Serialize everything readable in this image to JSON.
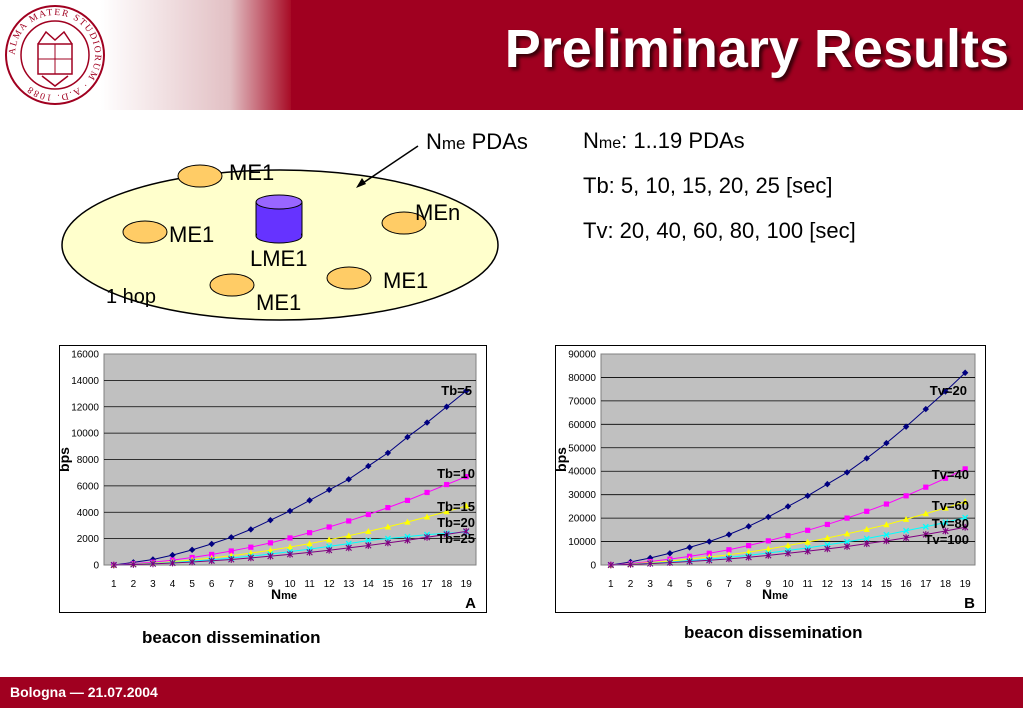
{
  "header": {
    "title": "Preliminary Results"
  },
  "seal": {
    "text": "ALMA MATER STUDIORUM · A.D. 1088"
  },
  "footer": {
    "text": "Bologna — 21.07.2004"
  },
  "diagram": {
    "nodes": [
      "ME1",
      "MEn",
      "ME1",
      "ME1",
      "ME1"
    ],
    "center_label": "LME1",
    "hop_label": "1 hop",
    "pointer_main": "N",
    "pointer_sub": "me",
    "pointer_rest": " PDAs"
  },
  "params": {
    "nme_main": "N",
    "nme_sub": "me",
    "nme_rest": ": 1..19 PDAs",
    "tb": "Tb: 5, 10, 15, 20, 25 [sec]",
    "tv": "Tv: 20, 40, 60, 80, 100 [sec]"
  },
  "chart_data": [
    {
      "type": "line",
      "panel": "A",
      "caption": "beacon dissemination",
      "xlabel_main": "N",
      "xlabel_sub": "me",
      "ylabel": "bps",
      "x": [
        1,
        2,
        3,
        4,
        5,
        6,
        7,
        8,
        9,
        10,
        11,
        12,
        13,
        14,
        15,
        16,
        17,
        18,
        19
      ],
      "ylim": [
        0,
        16000
      ],
      "yticks": [
        0,
        2000,
        4000,
        6000,
        8000,
        10000,
        12000,
        14000,
        16000
      ],
      "grid": true,
      "series": [
        {
          "name": "Tb=5",
          "color": "#000080",
          "marker": "diamond",
          "values": [
            0,
            200,
            420,
            750,
            1150,
            1600,
            2100,
            2700,
            3400,
            4100,
            4900,
            5700,
            6500,
            7500,
            8500,
            9700,
            10800,
            12000,
            13200
          ]
        },
        {
          "name": "Tb=10",
          "color": "#ff00ff",
          "marker": "square",
          "values": [
            0,
            100,
            210,
            370,
            570,
            800,
            1060,
            1350,
            1680,
            2050,
            2450,
            2880,
            3340,
            3830,
            4350,
            4900,
            5500,
            6100,
            6700
          ]
        },
        {
          "name": "Tb=15",
          "color": "#ffff00",
          "marker": "triangle",
          "values": [
            0,
            70,
            140,
            250,
            380,
            530,
            700,
            900,
            1120,
            1360,
            1620,
            1910,
            2220,
            2550,
            2890,
            3260,
            3650,
            4050,
            4480
          ]
        },
        {
          "name": "Tb=20",
          "color": "#00ffff",
          "marker": "x",
          "values": [
            0,
            50,
            110,
            190,
            290,
            400,
            530,
            670,
            830,
            1010,
            1200,
            1410,
            1620,
            1860,
            2000,
            2150,
            2300,
            2400,
            2500
          ]
        },
        {
          "name": "Tb=25",
          "color": "#800080",
          "marker": "star",
          "values": [
            0,
            40,
            90,
            150,
            230,
            320,
            420,
            540,
            670,
            810,
            960,
            1120,
            1300,
            1480,
            1680,
            1880,
            2100,
            2320,
            2550
          ]
        }
      ]
    },
    {
      "type": "line",
      "panel": "B",
      "caption": "beacon dissemination",
      "xlabel_main": "N",
      "xlabel_sub": "me",
      "ylabel": "bps",
      "x": [
        1,
        2,
        3,
        4,
        5,
        6,
        7,
        8,
        9,
        10,
        11,
        12,
        13,
        14,
        15,
        16,
        17,
        18,
        19
      ],
      "ylim": [
        0,
        90000
      ],
      "yticks": [
        0,
        10000,
        20000,
        30000,
        40000,
        50000,
        60000,
        70000,
        80000,
        90000
      ],
      "grid": true,
      "series": [
        {
          "name": "Tv=20",
          "color": "#000080",
          "marker": "diamond",
          "values": [
            0,
            1300,
            3000,
            5000,
            7500,
            10000,
            13000,
            16500,
            20500,
            25000,
            29500,
            34500,
            39500,
            45500,
            52000,
            59000,
            66500,
            74000,
            82000
          ]
        },
        {
          "name": "Tv=40",
          "color": "#ff00ff",
          "marker": "square",
          "values": [
            0,
            650,
            1500,
            2500,
            3700,
            5000,
            6500,
            8300,
            10300,
            12500,
            14800,
            17300,
            20000,
            22900,
            26000,
            29500,
            33200,
            37000,
            41000
          ]
        },
        {
          "name": "Tv=60",
          "color": "#ffff00",
          "marker": "triangle",
          "values": [
            0,
            430,
            1000,
            1700,
            2500,
            3400,
            4400,
            5500,
            6800,
            8300,
            9800,
            11500,
            13300,
            15200,
            17200,
            19500,
            21900,
            24300,
            27000
          ]
        },
        {
          "name": "Tv=80",
          "color": "#00ffff",
          "marker": "x",
          "values": [
            0,
            330,
            750,
            1250,
            1850,
            2500,
            3300,
            4100,
            5100,
            6200,
            7300,
            8600,
            9900,
            11300,
            12900,
            14600,
            16300,
            18200,
            20200
          ]
        },
        {
          "name": "Tv=100",
          "color": "#800080",
          "marker": "star",
          "values": [
            0,
            260,
            600,
            1000,
            1500,
            2000,
            2600,
            3300,
            4100,
            5000,
            5900,
            6900,
            7900,
            9100,
            10300,
            11600,
            13000,
            14500,
            16100
          ]
        }
      ]
    }
  ]
}
